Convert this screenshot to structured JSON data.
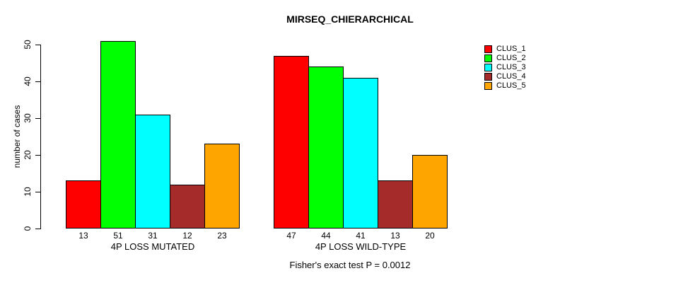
{
  "chart_data": {
    "type": "bar",
    "title": "MIRSEQ_CHIERARCHICAL",
    "ylabel": "number of cases",
    "xlabel": "",
    "footer": "Fisher's exact test P = 0.0012",
    "ylim": [
      0,
      50
    ],
    "yticks": [
      0,
      10,
      20,
      30,
      40,
      50
    ],
    "grid": false,
    "legend_position": "right",
    "bar_value_labels": true,
    "categories": [
      "4P LOSS MUTATED",
      "4P LOSS WILD-TYPE"
    ],
    "series": [
      {
        "name": "CLUS_1",
        "color": "#FF0000",
        "values": [
          13,
          47
        ]
      },
      {
        "name": "CLUS_2",
        "color": "#00FF00",
        "values": [
          51,
          44
        ]
      },
      {
        "name": "CLUS_3",
        "color": "#00FFFF",
        "values": [
          31,
          41
        ]
      },
      {
        "name": "CLUS_4",
        "color": "#A52A2A",
        "values": [
          12,
          13
        ]
      },
      {
        "name": "CLUS_5",
        "color": "#FFA500",
        "values": [
          23,
          20
        ]
      }
    ]
  }
}
